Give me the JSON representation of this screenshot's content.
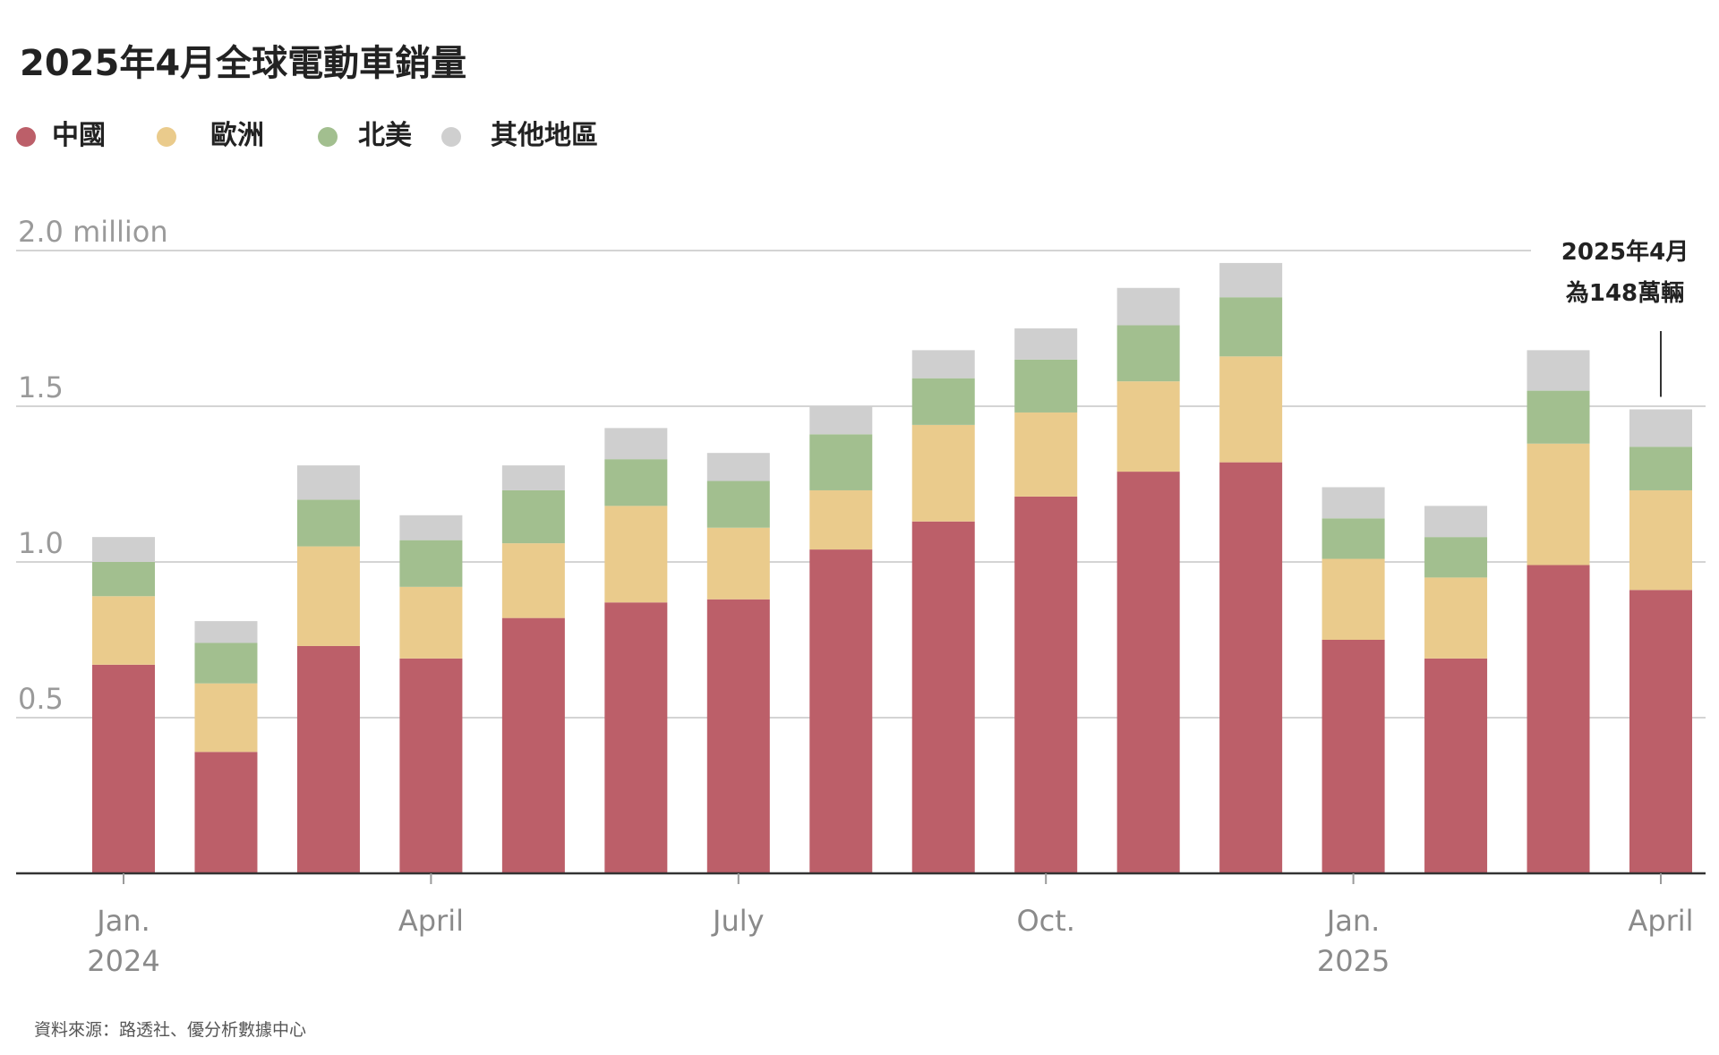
{
  "title": "2025年4月全球電動車銷量",
  "source": "資料來源：路透社、優分析數據中心",
  "legend": [
    {
      "name": "中國",
      "color": "#bc5f69"
    },
    {
      "name": "歐洲",
      "color": "#eacb8c"
    },
    {
      "name": "北美",
      "color": "#a2bf8f"
    },
    {
      "name": "其他地區",
      "color": "#cfcfcf"
    }
  ],
  "annotation": {
    "line1": "2025年4月",
    "line2": "為148萬輛"
  },
  "chart_data": {
    "type": "bar",
    "stacked": true,
    "title": "2025年4月全球電動車銷量",
    "xlabel": "",
    "ylabel": "",
    "ylim": [
      0,
      2.0
    ],
    "y_unit": "million",
    "y_ticks": [
      {
        "value": 0.5,
        "label": "0.5"
      },
      {
        "value": 1.0,
        "label": "1.0"
      },
      {
        "value": 1.5,
        "label": "1.5"
      },
      {
        "value": 2.0,
        "label": "2.0 million"
      }
    ],
    "categories": [
      "2024-01",
      "2024-02",
      "2024-03",
      "2024-04",
      "2024-05",
      "2024-06",
      "2024-07",
      "2024-08",
      "2024-09",
      "2024-10",
      "2024-11",
      "2024-12",
      "2025-01",
      "2025-02",
      "2025-03",
      "2025-04"
    ],
    "x_ticks": [
      {
        "index": 0,
        "label": "Jan.",
        "sublabel": "2024"
      },
      {
        "index": 3,
        "label": "April",
        "sublabel": ""
      },
      {
        "index": 6,
        "label": "July",
        "sublabel": ""
      },
      {
        "index": 9,
        "label": "Oct.",
        "sublabel": ""
      },
      {
        "index": 12,
        "label": "Jan.",
        "sublabel": "2025"
      },
      {
        "index": 15,
        "label": "April",
        "sublabel": ""
      }
    ],
    "series": [
      {
        "name": "中國",
        "color": "#bc5f69",
        "values": [
          0.67,
          0.39,
          0.73,
          0.69,
          0.82,
          0.87,
          0.88,
          1.04,
          1.13,
          1.21,
          1.29,
          1.32,
          0.75,
          0.69,
          0.99,
          0.91
        ]
      },
      {
        "name": "歐洲",
        "color": "#eacb8c",
        "values": [
          0.22,
          0.22,
          0.32,
          0.23,
          0.24,
          0.31,
          0.23,
          0.19,
          0.31,
          0.27,
          0.29,
          0.34,
          0.26,
          0.26,
          0.39,
          0.32
        ]
      },
      {
        "name": "北美",
        "color": "#a2bf8f",
        "values": [
          0.11,
          0.13,
          0.15,
          0.15,
          0.17,
          0.15,
          0.15,
          0.18,
          0.15,
          0.17,
          0.18,
          0.19,
          0.13,
          0.13,
          0.17,
          0.14
        ]
      },
      {
        "name": "其他地區",
        "color": "#cfcfcf",
        "values": [
          0.08,
          0.07,
          0.11,
          0.08,
          0.08,
          0.1,
          0.09,
          0.09,
          0.09,
          0.1,
          0.12,
          0.11,
          0.1,
          0.1,
          0.13,
          0.12
        ]
      }
    ],
    "grid": true,
    "legend_position": "top-left",
    "annotation_index": 15
  }
}
